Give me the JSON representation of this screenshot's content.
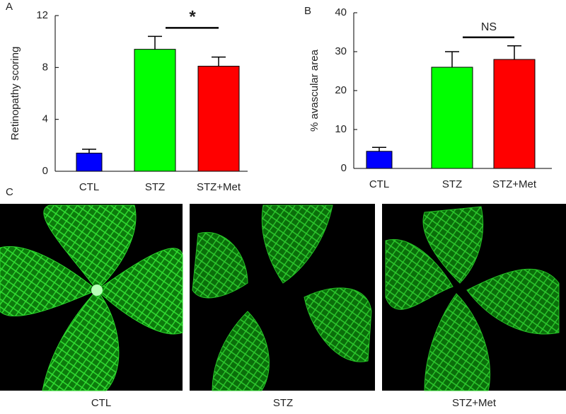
{
  "chart_data": [
    {
      "type": "bar",
      "panel_label": "A",
      "ylabel": "Retinopathy scoring",
      "categories": [
        "CTL",
        "STZ",
        "STZ+Met"
      ],
      "values": [
        1.4,
        9.4,
        8.1
      ],
      "errors": [
        0.3,
        1.0,
        0.7
      ],
      "colors": [
        "#0000ff",
        "#00ff00",
        "#ff0000"
      ],
      "ylim": [
        0,
        12
      ],
      "yticks": [
        0,
        4,
        8,
        12
      ],
      "annotation": "*"
    },
    {
      "type": "bar",
      "panel_label": "B",
      "ylabel": "% avascular area",
      "categories": [
        "CTL",
        "STZ",
        "STZ+Met"
      ],
      "values": [
        4.4,
        26,
        28
      ],
      "errors": [
        1.0,
        4,
        3.5
      ],
      "colors": [
        "#0000ff",
        "#00ff00",
        "#ff0000"
      ],
      "ylim": [
        0,
        40
      ],
      "yticks": [
        0,
        10,
        20,
        30,
        40
      ],
      "annotation": "NS"
    }
  ],
  "panel_c": {
    "label": "C",
    "captions": [
      "CTL",
      "STZ",
      "STZ+Met"
    ]
  }
}
